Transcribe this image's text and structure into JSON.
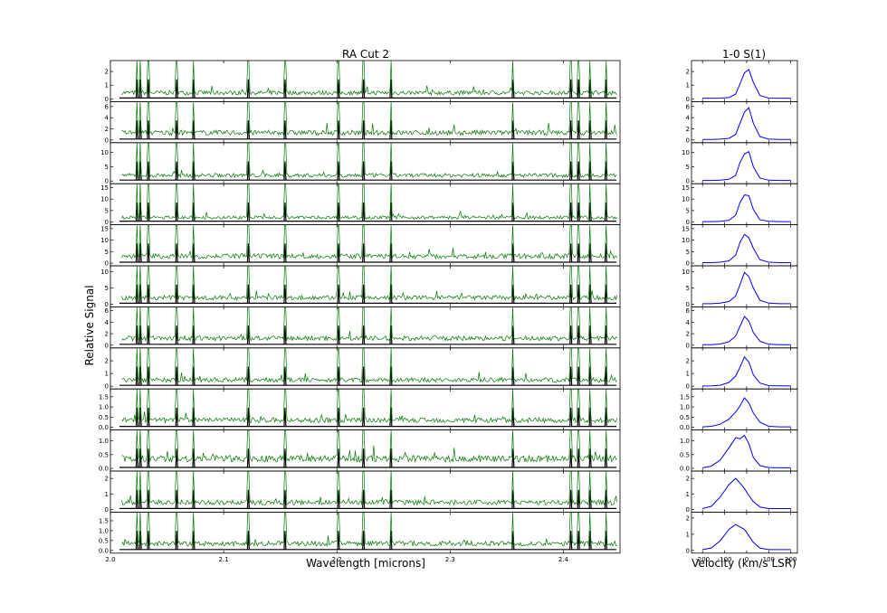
{
  "left_title": "RA Cut 2",
  "right_title": "1-0 S(1)",
  "ylabel": "Relative Signal",
  "left_xlabel": "Wavelength [microns]",
  "right_xlabel": "Velocity (km/s LSR)",
  "colors": {
    "spectrum": "#007700",
    "model": "#000000",
    "profile": "#0000ff"
  },
  "chart_data": [
    {
      "type": "line",
      "panel": "spectra",
      "title": "RA Cut 2",
      "xlabel": "Wavelength [microns]",
      "ylabel": "Relative Signal",
      "xlim": [
        2.0,
        2.45
      ],
      "x_ticks": [
        "2.0",
        "2.1",
        "2.2",
        "2.3",
        "2.4"
      ],
      "series": [
        {
          "color": "#007700",
          "role": "spectrum"
        },
        {
          "color": "#000000",
          "role": "line model"
        }
      ],
      "line_positions_um": [
        2.0235,
        2.0265,
        2.0335,
        2.0585,
        2.0735,
        2.1218,
        2.1542,
        2.2014,
        2.2235,
        2.2477,
        2.3556,
        2.4066,
        2.4134,
        2.4237,
        2.4375
      ],
      "rows": [
        {
          "ylim": [
            0,
            2.6
          ],
          "yticks": [
            "0",
            "1",
            "2"
          ],
          "continuum": 0.45
        },
        {
          "ylim": [
            0,
            6.4
          ],
          "yticks": [
            "0",
            "2",
            "4",
            "6"
          ],
          "continuum": 1.3
        },
        {
          "ylim": [
            0,
            12.5
          ],
          "yticks": [
            "0",
            "5",
            "10"
          ],
          "continuum": 2.0
        },
        {
          "ylim": [
            0,
            15.5
          ],
          "yticks": [
            "0",
            "5",
            "10",
            "15"
          ],
          "continuum": 2.0
        },
        {
          "ylim": [
            0,
            15.5
          ],
          "yticks": [
            "0",
            "5",
            "10",
            "15"
          ],
          "continuum": 3.0
        },
        {
          "ylim": [
            0,
            11
          ],
          "yticks": [
            "0",
            "5",
            "10"
          ],
          "continuum": 2.0
        },
        {
          "ylim": [
            0,
            6.2
          ],
          "yticks": [
            "0",
            "2",
            "4",
            "6"
          ],
          "continuum": 1.2
        },
        {
          "ylim": [
            0,
            2.8
          ],
          "yticks": [
            "0",
            "1",
            "2"
          ],
          "continuum": 0.5
        },
        {
          "ylim": [
            0,
            1.75
          ],
          "yticks": [
            "0.0",
            "0.5",
            "1.0",
            "1.5"
          ],
          "continuum": 0.35
        },
        {
          "ylim": [
            0,
            1.3
          ],
          "yticks": [
            "0.0",
            "0.5",
            "1.0"
          ],
          "continuum": 0.35
        },
        {
          "ylim": [
            0,
            2.3
          ],
          "yticks": [
            "0",
            "1",
            "2"
          ],
          "continuum": 0.45
        },
        {
          "ylim": [
            0,
            1.8
          ],
          "yticks": [
            "0.0",
            "0.5",
            "1.0",
            "1.5"
          ],
          "continuum": 0.35
        }
      ]
    },
    {
      "type": "line",
      "panel": "line profiles",
      "title": "1-0 S(1)",
      "xlabel": "Velocity (km/s LSR)",
      "xlim": [
        -250,
        230
      ],
      "x_ticks": [
        "-200",
        "-100",
        "0",
        "100",
        "200"
      ],
      "velocity": [
        -200,
        -160,
        -120,
        -80,
        -50,
        -30,
        -10,
        10,
        30,
        60,
        100,
        150,
        200
      ],
      "rows": [
        {
          "ylim": [
            0,
            2.6
          ],
          "yticks": [
            "0",
            "1",
            "2"
          ],
          "values": [
            0.05,
            0.05,
            0.06,
            0.1,
            0.35,
            1.1,
            1.9,
            2.15,
            1.2,
            0.25,
            0.06,
            0.05,
            0.05
          ]
        },
        {
          "ylim": [
            0,
            6.4
          ],
          "yticks": [
            "0",
            "2",
            "4",
            "6"
          ],
          "values": [
            0.1,
            0.1,
            0.15,
            0.3,
            1.0,
            3.0,
            5.0,
            5.8,
            3.0,
            0.6,
            0.15,
            0.1,
            0.1
          ]
        },
        {
          "ylim": [
            0,
            12.5
          ],
          "yticks": [
            "0",
            "5",
            "10"
          ],
          "values": [
            0.2,
            0.2,
            0.3,
            0.6,
            2.0,
            6.5,
            9.5,
            10.3,
            5.0,
            1.0,
            0.3,
            0.2,
            0.2
          ]
        },
        {
          "ylim": [
            0,
            15.5
          ],
          "yticks": [
            "0",
            "5",
            "10",
            "15"
          ],
          "values": [
            0.2,
            0.2,
            0.3,
            0.8,
            3.0,
            8.5,
            11.8,
            11.5,
            5.5,
            1.0,
            0.3,
            0.2,
            0.2
          ]
        },
        {
          "ylim": [
            0,
            15.5
          ],
          "yticks": [
            "0",
            "5",
            "10",
            "15"
          ],
          "values": [
            0.2,
            0.2,
            0.4,
            1.0,
            3.5,
            9.0,
            12.5,
            11.0,
            6.5,
            1.5,
            0.4,
            0.2,
            0.2
          ]
        },
        {
          "ylim": [
            0,
            11
          ],
          "yticks": [
            "0",
            "5",
            "10"
          ],
          "values": [
            0.15,
            0.15,
            0.3,
            0.8,
            2.5,
            6.0,
            9.8,
            8.5,
            5.0,
            1.2,
            0.3,
            0.15,
            0.15
          ]
        },
        {
          "ylim": [
            0,
            6.2
          ],
          "yticks": [
            "0",
            "2",
            "4",
            "6"
          ],
          "values": [
            0.1,
            0.1,
            0.2,
            0.6,
            1.6,
            3.3,
            5.0,
            4.2,
            2.2,
            0.7,
            0.15,
            0.1,
            0.1
          ]
        },
        {
          "ylim": [
            0,
            2.8
          ],
          "yticks": [
            "0",
            "1",
            "2"
          ],
          "values": [
            0.02,
            0.03,
            0.08,
            0.3,
            0.8,
            1.5,
            2.3,
            1.9,
            0.9,
            0.25,
            0.05,
            0.03,
            0.02
          ]
        },
        {
          "ylim": [
            0,
            1.75
          ],
          "yticks": [
            "0.0",
            "0.5",
            "1.0",
            "1.5"
          ],
          "values": [
            0.02,
            0.05,
            0.15,
            0.4,
            0.75,
            1.05,
            1.45,
            1.2,
            0.7,
            0.25,
            0.05,
            0.02,
            0.02
          ]
        },
        {
          "ylim": [
            0,
            1.3
          ],
          "yticks": [
            "0.0",
            "0.5",
            "1.0"
          ],
          "values": [
            0.02,
            0.08,
            0.3,
            0.75,
            1.12,
            1.08,
            1.2,
            0.9,
            0.4,
            0.1,
            0.03,
            0.02,
            0.02
          ]
        },
        {
          "ylim": [
            0,
            2.3
          ],
          "yticks": [
            "0",
            "1",
            "2"
          ],
          "values": [
            0.05,
            0.2,
            0.8,
            1.6,
            2.0,
            1.7,
            1.35,
            0.9,
            0.5,
            0.15,
            0.05,
            0.05,
            0.05
          ]
        },
        {
          "ylim": [
            0,
            2.2
          ],
          "yticks": [
            "0",
            "1",
            "2"
          ],
          "values": [
            0.05,
            0.15,
            0.6,
            1.3,
            1.6,
            1.45,
            1.3,
            0.9,
            0.5,
            0.15,
            0.05,
            0.05,
            0.05
          ]
        }
      ]
    }
  ]
}
